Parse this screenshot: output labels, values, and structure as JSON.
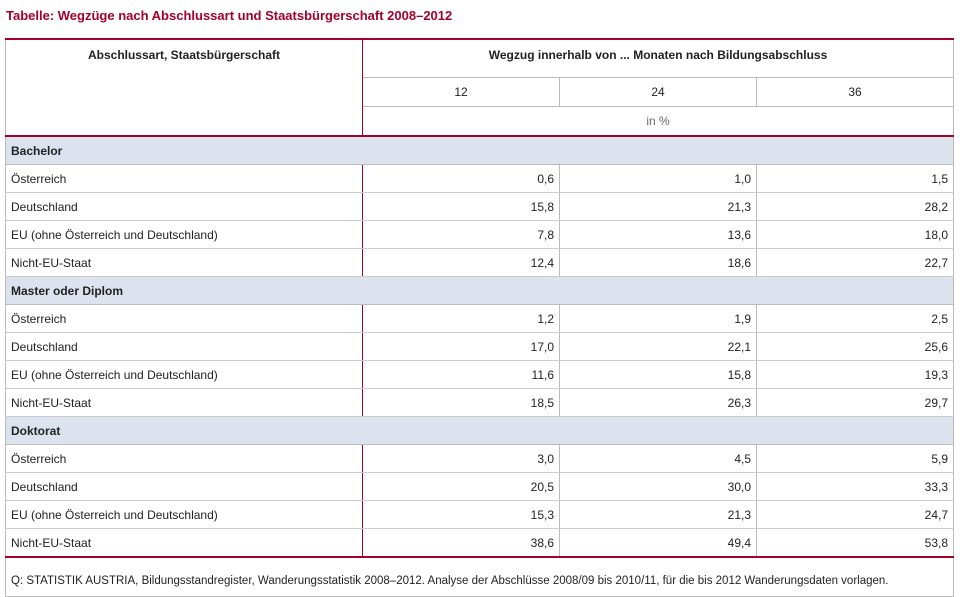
{
  "title": "Tabelle: Wegzüge nach Abschlussart und Staatsbürgerschaft 2008–2012",
  "header": {
    "col0": "Abschlussart, Staatsbürgerschaft",
    "group": "Wegzug innerhalb von ... Monaten nach Bildungsabschluss",
    "months": [
      "12",
      "24",
      "36"
    ],
    "unit": "in %"
  },
  "sections": [
    {
      "name": "Bachelor",
      "rows": [
        {
          "label": "Österreich",
          "values": [
            "0,6",
            "1,0",
            "1,5"
          ]
        },
        {
          "label": "Deutschland",
          "values": [
            "15,8",
            "21,3",
            "28,2"
          ]
        },
        {
          "label": "EU (ohne Österreich und Deutschland)",
          "values": [
            "7,8",
            "13,6",
            "18,0"
          ]
        },
        {
          "label": "Nicht-EU-Staat",
          "values": [
            "12,4",
            "18,6",
            "22,7"
          ]
        }
      ]
    },
    {
      "name": "Master oder Diplom",
      "rows": [
        {
          "label": "Österreich",
          "values": [
            "1,2",
            "1,9",
            "2,5"
          ]
        },
        {
          "label": "Deutschland",
          "values": [
            "17,0",
            "22,1",
            "25,6"
          ]
        },
        {
          "label": "EU (ohne Österreich und Deutschland)",
          "values": [
            "11,6",
            "15,8",
            "19,3"
          ]
        },
        {
          "label": "Nicht-EU-Staat",
          "values": [
            "18,5",
            "26,3",
            "29,7"
          ]
        }
      ]
    },
    {
      "name": "Doktorat",
      "rows": [
        {
          "label": "Österreich",
          "values": [
            "3,0",
            "4,5",
            "5,9"
          ]
        },
        {
          "label": "Deutschland",
          "values": [
            "20,5",
            "30,0",
            "33,3"
          ]
        },
        {
          "label": "EU (ohne Österreich und Deutschland)",
          "values": [
            "15,3",
            "21,3",
            "24,7"
          ]
        },
        {
          "label": "Nicht-EU-Staat",
          "values": [
            "38,6",
            "49,4",
            "53,8"
          ]
        }
      ]
    }
  ],
  "source": "Q: STATISTIK AUSTRIA, Bildungsstandregister, Wanderungsstatistik 2008–2012. Analyse der Abschlüsse 2008/09 bis 2010/11, für die bis 2012 Wanderungsdaten vorlagen.",
  "colors": {
    "accent": "#a5002a",
    "section_bg": "#dce3ef"
  }
}
